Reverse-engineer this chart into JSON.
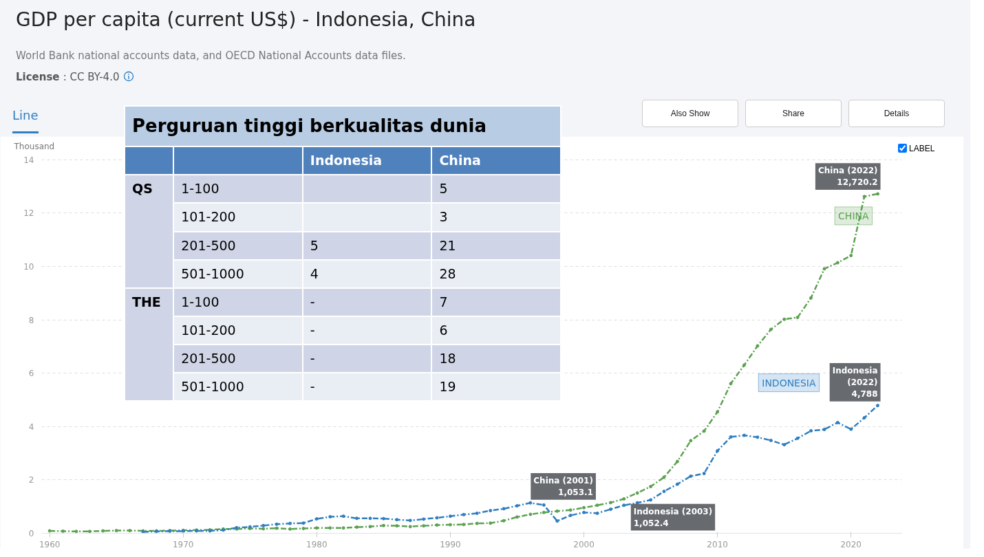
{
  "chart_data": [
    {
      "type": "line",
      "title": "GDP per capita (current US$) - Indonesia, China",
      "subtitle": "World Bank national accounts data, and OECD National Accounts data files.",
      "ylabel": "Thousand",
      "x": [
        1960,
        1961,
        1962,
        1963,
        1964,
        1965,
        1966,
        1967,
        1968,
        1969,
        1970,
        1971,
        1972,
        1973,
        1974,
        1975,
        1976,
        1977,
        1978,
        1979,
        1980,
        1981,
        1982,
        1983,
        1984,
        1985,
        1986,
        1987,
        1988,
        1989,
        1990,
        1991,
        1992,
        1993,
        1994,
        1995,
        1996,
        1997,
        1998,
        1999,
        2000,
        2001,
        2002,
        2003,
        2004,
        2005,
        2006,
        2007,
        2008,
        2009,
        2010,
        2011,
        2012,
        2013,
        2014,
        2015,
        2016,
        2017,
        2018,
        2019,
        2020,
        2021,
        2022
      ],
      "series": [
        {
          "name": "CHINA",
          "color": "#5ba150",
          "values": [
            0.09,
            0.08,
            0.07,
            0.07,
            0.09,
            0.1,
            0.1,
            0.09,
            0.09,
            0.1,
            0.11,
            0.12,
            0.13,
            0.16,
            0.16,
            0.18,
            0.17,
            0.19,
            0.16,
            0.18,
            0.2,
            0.2,
            0.2,
            0.23,
            0.25,
            0.29,
            0.28,
            0.25,
            0.28,
            0.31,
            0.32,
            0.33,
            0.37,
            0.38,
            0.47,
            0.61,
            0.71,
            0.78,
            0.83,
            0.87,
            0.96,
            1.05,
            1.15,
            1.29,
            1.51,
            1.75,
            2.1,
            2.69,
            3.47,
            3.83,
            4.55,
            5.61,
            6.3,
            7.02,
            7.64,
            8.02,
            8.09,
            8.82,
            9.91,
            10.14,
            10.41,
            12.62,
            12.72
          ]
        },
        {
          "name": "INDONESIA",
          "color": "#2f7ec1",
          "values": [
            null,
            null,
            null,
            null,
            null,
            null,
            null,
            0.05,
            0.07,
            0.08,
            0.08,
            0.09,
            0.09,
            0.12,
            0.21,
            0.24,
            0.29,
            0.34,
            0.37,
            0.38,
            0.54,
            0.62,
            0.64,
            0.56,
            0.56,
            0.55,
            0.51,
            0.48,
            0.53,
            0.58,
            0.64,
            0.7,
            0.75,
            0.85,
            0.92,
            1.03,
            1.14,
            1.06,
            0.46,
            0.67,
            0.78,
            0.75,
            0.9,
            1.05,
            1.14,
            1.25,
            1.57,
            1.84,
            2.14,
            2.24,
            3.09,
            3.61,
            3.67,
            3.6,
            3.48,
            3.32,
            3.56,
            3.84,
            3.89,
            4.15,
            3.9,
            4.33,
            4.79
          ]
        }
      ],
      "xlim": [
        1959.4,
        2023.8
      ],
      "ylim": [
        0,
        14.2
      ],
      "xticks": [
        1960,
        1970,
        1980,
        1990,
        2000,
        2010,
        2020
      ],
      "yticks": [
        0,
        2,
        4,
        6,
        8,
        10,
        12,
        14
      ],
      "grid": "y",
      "marker": "circle",
      "line_style": "dashed",
      "annotations": [
        "License : CC BY-4.0",
        "Line",
        "Also Show",
        "Share",
        "Details",
        "LABEL",
        {
          "text": "China (2001)\n1,053.1",
          "x": 2001,
          "y": 1.05
        },
        {
          "text": "Indonesia (2003)\n1,052.4",
          "x": 2003,
          "y": 1.05
        },
        {
          "text": "China (2022)\n12,720.2",
          "x": 2022,
          "y": 12.72
        },
        {
          "text": "Indonesia\n(2022)\n4,788",
          "x": 2022,
          "y": 4.79
        }
      ]
    },
    {
      "type": "other",
      "title": "Perguruan tinggi berkualitas dunia",
      "categories": [
        "Indonesia",
        "China"
      ],
      "y_categories": [
        "1-100",
        "101-200",
        "201-500",
        "501-1000",
        "1-100",
        "101-200",
        "201-500",
        "501-1000"
      ],
      "annotations": [
        "QS",
        "THE"
      ],
      "cell_labels": [
        [
          null,
          "5"
        ],
        [
          null,
          "3"
        ],
        [
          "5",
          "21"
        ],
        [
          "4",
          "28"
        ],
        [
          "-",
          "7"
        ],
        [
          "-",
          "6"
        ],
        [
          "-",
          "18"
        ],
        [
          "-",
          "19"
        ]
      ]
    }
  ]
}
